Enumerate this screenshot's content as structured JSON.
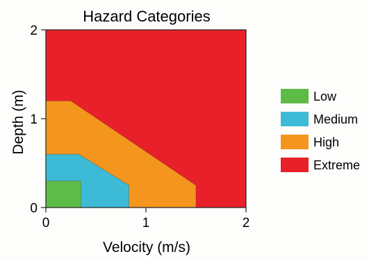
{
  "chart_data": {
    "type": "area",
    "title": "Hazard Categories",
    "xlabel": "Velocity (m/s)",
    "ylabel": "Depth (m)",
    "xlim": [
      0,
      2
    ],
    "ylim": [
      0,
      2
    ],
    "xticks": [
      0,
      1,
      2
    ],
    "yticks": [
      0,
      1,
      2
    ],
    "grid": false,
    "legend_position": "right",
    "regions": [
      {
        "name": "Extreme",
        "color": "#e8202a",
        "points": [
          [
            0,
            0
          ],
          [
            2,
            0
          ],
          [
            2,
            2
          ],
          [
            0,
            2
          ]
        ]
      },
      {
        "name": "High",
        "color": "#f4951e",
        "points": [
          [
            0,
            0
          ],
          [
            1.5,
            0
          ],
          [
            1.5,
            0.25
          ],
          [
            0.25,
            1.2
          ],
          [
            0,
            1.2
          ]
        ]
      },
      {
        "name": "Medium",
        "color": "#3dbbd6",
        "points": [
          [
            0,
            0
          ],
          [
            0.83,
            0
          ],
          [
            0.83,
            0.25
          ],
          [
            0.33,
            0.6
          ],
          [
            0,
            0.6
          ]
        ]
      },
      {
        "name": "Low",
        "color": "#5fbb47",
        "points": [
          [
            0,
            0
          ],
          [
            0.35,
            0
          ],
          [
            0.35,
            0.3
          ],
          [
            0,
            0.3
          ]
        ]
      }
    ],
    "legend": [
      {
        "name": "Low",
        "color": "#5fbb47"
      },
      {
        "name": "Medium",
        "color": "#3dbbd6"
      },
      {
        "name": "High",
        "color": "#f4951e"
      },
      {
        "name": "Extreme",
        "color": "#e8202a"
      }
    ]
  }
}
